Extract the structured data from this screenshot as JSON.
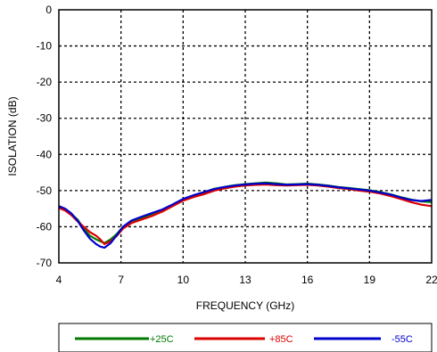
{
  "chart_data": {
    "type": "line",
    "xlabel": "FREQUENCY (GHz)",
    "ylabel": "ISOLATION (dB)",
    "xlim": [
      4,
      22
    ],
    "ylim": [
      -70,
      0
    ],
    "xticks": [
      4,
      7,
      10,
      13,
      16,
      19,
      22
    ],
    "yticks": [
      0,
      -10,
      -20,
      -30,
      -40,
      -50,
      -60,
      -70
    ],
    "grid": true,
    "legend_position": "bottom",
    "series": [
      {
        "name": "+25C",
        "color": "#007a00",
        "x": [
          4.0,
          4.3,
          4.6,
          4.9,
          5.2,
          5.5,
          5.8,
          6.0,
          6.2,
          6.5,
          6.8,
          7.1,
          7.5,
          8.0,
          8.5,
          9.0,
          9.5,
          10.0,
          10.5,
          11.0,
          11.5,
          12.0,
          12.5,
          13.0,
          13.5,
          14.0,
          14.5,
          15.0,
          15.5,
          16.0,
          16.5,
          17.0,
          17.5,
          18.0,
          18.5,
          19.0,
          19.5,
          20.0,
          20.5,
          21.0,
          21.5,
          22.0
        ],
        "y": [
          -54.5,
          -55.2,
          -56.5,
          -58.0,
          -60.5,
          -62.5,
          -63.5,
          -64.0,
          -64.5,
          -63.5,
          -62.0,
          -60.0,
          -58.5,
          -57.5,
          -56.5,
          -55.5,
          -54.0,
          -52.5,
          -51.5,
          -50.5,
          -49.5,
          -49.0,
          -48.5,
          -48.2,
          -48.0,
          -47.8,
          -48.0,
          -48.3,
          -48.2,
          -48.1,
          -48.3,
          -48.6,
          -49.0,
          -49.3,
          -49.6,
          -49.9,
          -50.4,
          -51.0,
          -51.8,
          -52.5,
          -53.0,
          -53.2
        ]
      },
      {
        "name": "+85C",
        "color": "#dd0000",
        "x": [
          4.0,
          4.3,
          4.6,
          4.9,
          5.2,
          5.5,
          5.8,
          6.0,
          6.2,
          6.5,
          6.8,
          7.1,
          7.5,
          8.0,
          8.5,
          9.0,
          9.5,
          10.0,
          10.5,
          11.0,
          11.5,
          12.0,
          12.5,
          13.0,
          13.5,
          14.0,
          14.5,
          15.0,
          15.5,
          16.0,
          16.5,
          17.0,
          17.5,
          18.0,
          18.5,
          19.0,
          19.5,
          20.0,
          20.5,
          21.0,
          21.5,
          22.0
        ],
        "y": [
          -54.8,
          -55.5,
          -56.8,
          -58.5,
          -60.0,
          -61.5,
          -62.5,
          -63.5,
          -64.8,
          -64.0,
          -62.5,
          -60.5,
          -59.0,
          -58.0,
          -57.0,
          -55.8,
          -54.3,
          -52.8,
          -51.8,
          -51.0,
          -50.0,
          -49.4,
          -48.9,
          -48.6,
          -48.4,
          -48.3,
          -48.5,
          -48.6,
          -48.5,
          -48.4,
          -48.6,
          -48.9,
          -49.3,
          -49.6,
          -50.0,
          -50.3,
          -50.8,
          -51.5,
          -52.3,
          -53.2,
          -53.9,
          -54.3
        ]
      },
      {
        "name": "-55C",
        "color": "#0000cc",
        "x": [
          4.0,
          4.3,
          4.6,
          4.9,
          5.2,
          5.5,
          5.8,
          6.0,
          6.2,
          6.5,
          6.8,
          7.1,
          7.5,
          8.0,
          8.5,
          9.0,
          9.5,
          10.0,
          10.5,
          11.0,
          11.5,
          12.0,
          12.5,
          13.0,
          13.5,
          14.0,
          14.5,
          15.0,
          15.5,
          16.0,
          16.5,
          17.0,
          17.5,
          18.0,
          18.5,
          19.0,
          19.5,
          20.0,
          20.5,
          21.0,
          21.5,
          22.0
        ],
        "y": [
          -54.3,
          -55.0,
          -56.3,
          -58.3,
          -61.0,
          -63.3,
          -64.8,
          -65.5,
          -65.8,
          -64.5,
          -62.3,
          -60.0,
          -58.3,
          -57.2,
          -56.2,
          -55.2,
          -53.8,
          -52.3,
          -51.3,
          -50.4,
          -49.6,
          -49.0,
          -48.6,
          -48.3,
          -48.1,
          -48.0,
          -48.2,
          -48.4,
          -48.3,
          -48.2,
          -48.4,
          -48.7,
          -49.1,
          -49.4,
          -49.7,
          -50.0,
          -50.5,
          -51.1,
          -51.9,
          -52.6,
          -52.9,
          -52.6
        ]
      }
    ]
  }
}
